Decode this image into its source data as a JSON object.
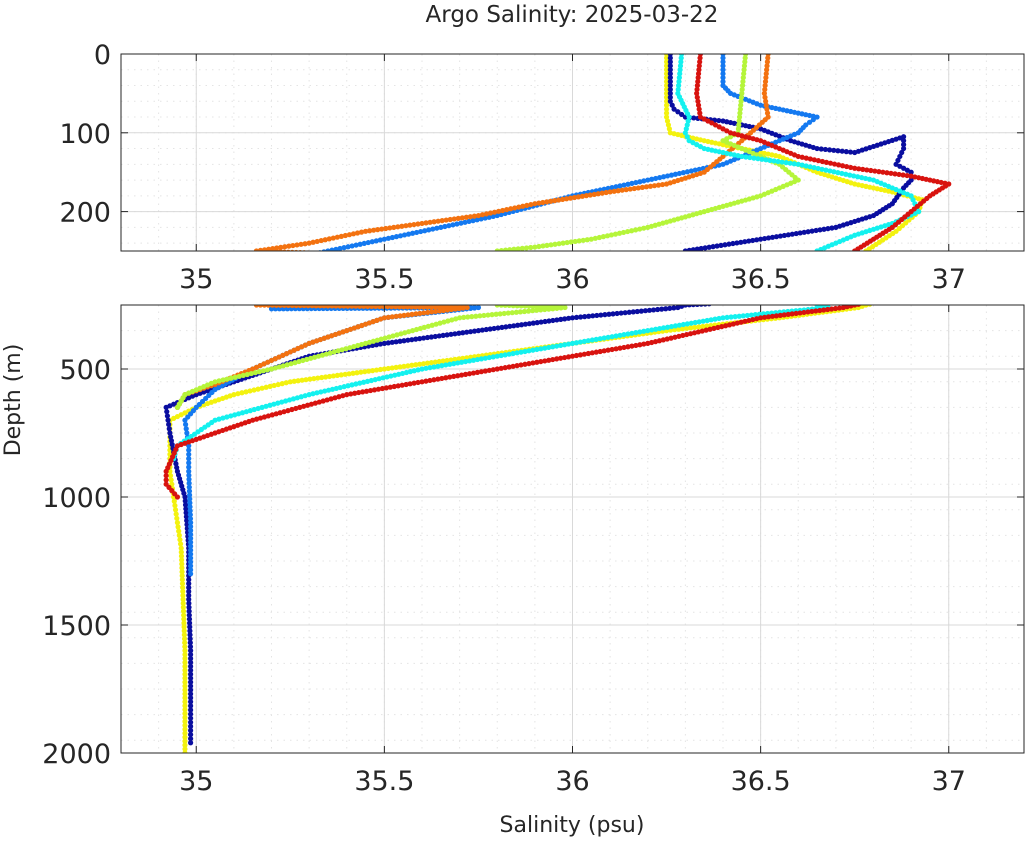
{
  "chart_data": {
    "type": "scatter",
    "title": "Argo Salinity: 2025-03-22",
    "xlabel": "Salinity (psu)",
    "ylabel": "Depth (m)",
    "grid": true,
    "legend": "none",
    "panels": [
      {
        "name": "upper",
        "xlim": [
          34.8,
          37.2
        ],
        "ylim": [
          0,
          250
        ],
        "y_reversed": true,
        "xticks": [
          35,
          35.5,
          36,
          36.5,
          37
        ],
        "xtick_labels": [
          "35",
          "35.5",
          "36",
          "36.5",
          "37"
        ],
        "yticks": [
          0,
          100,
          200
        ],
        "ytick_labels": [
          "0",
          "100",
          "200"
        ]
      },
      {
        "name": "lower",
        "xlim": [
          34.8,
          37.2
        ],
        "ylim": [
          250,
          2000
        ],
        "y_reversed": true,
        "xticks": [
          35,
          35.5,
          36,
          36.5,
          37
        ],
        "xtick_labels": [
          "35",
          "35.5",
          "36",
          "36.5",
          "37"
        ],
        "yticks": [
          500,
          1000,
          1500,
          2000
        ],
        "ytick_labels": [
          "500",
          "1000",
          "1500",
          "2000"
        ]
      }
    ],
    "series": [
      {
        "color": "#f3f20f",
        "points": [
          [
            36.25,
            0
          ],
          [
            36.25,
            80
          ],
          [
            36.26,
            100
          ],
          [
            36.35,
            110
          ],
          [
            36.45,
            120
          ],
          [
            36.55,
            130
          ],
          [
            36.65,
            150
          ],
          [
            36.75,
            165
          ],
          [
            36.85,
            175
          ],
          [
            36.93,
            185
          ],
          [
            36.92,
            200
          ],
          [
            36.86,
            225
          ],
          [
            36.78,
            250
          ],
          [
            36.76,
            260
          ],
          [
            36.55,
            300
          ],
          [
            36.25,
            350
          ],
          [
            36.0,
            400
          ],
          [
            35.75,
            450
          ],
          [
            35.5,
            500
          ],
          [
            35.25,
            550
          ],
          [
            35.1,
            600
          ],
          [
            35.0,
            650
          ],
          [
            34.93,
            700
          ],
          [
            34.93,
            800
          ],
          [
            34.93,
            900
          ],
          [
            34.94,
            1000
          ],
          [
            34.95,
            1100
          ],
          [
            34.96,
            1200
          ],
          [
            34.965,
            1400
          ],
          [
            34.97,
            1600
          ],
          [
            34.97,
            1800
          ],
          [
            34.97,
            2000
          ]
        ]
      },
      {
        "color": "#0a0ea0",
        "points": [
          [
            36.26,
            0
          ],
          [
            36.26,
            60
          ],
          [
            36.27,
            70
          ],
          [
            36.3,
            80
          ],
          [
            36.4,
            85
          ],
          [
            36.5,
            95
          ],
          [
            36.58,
            110
          ],
          [
            36.65,
            120
          ],
          [
            36.75,
            125
          ],
          [
            36.88,
            105
          ],
          [
            36.88,
            120
          ],
          [
            36.86,
            140
          ],
          [
            36.9,
            150
          ],
          [
            36.9,
            160
          ],
          [
            36.88,
            170
          ],
          [
            36.85,
            190
          ],
          [
            36.8,
            205
          ],
          [
            36.7,
            220
          ],
          [
            36.5,
            235
          ],
          [
            36.3,
            250
          ],
          [
            36.28,
            260
          ],
          [
            36.0,
            300
          ],
          [
            35.75,
            350
          ],
          [
            35.5,
            400
          ],
          [
            35.3,
            450
          ],
          [
            35.1,
            550
          ],
          [
            35.0,
            600
          ],
          [
            34.92,
            650
          ],
          [
            34.93,
            750
          ],
          [
            34.95,
            900
          ],
          [
            34.97,
            1000
          ],
          [
            34.98,
            1200
          ],
          [
            34.98,
            1400
          ],
          [
            34.985,
            1600
          ],
          [
            34.985,
            1800
          ],
          [
            34.985,
            1960
          ]
        ]
      },
      {
        "color": "#1479f0",
        "points": [
          [
            36.4,
            0
          ],
          [
            36.4,
            40
          ],
          [
            36.42,
            50
          ],
          [
            36.5,
            65
          ],
          [
            36.6,
            75
          ],
          [
            36.65,
            80
          ],
          [
            36.62,
            90
          ],
          [
            36.6,
            100
          ],
          [
            36.5,
            120
          ],
          [
            36.4,
            140
          ],
          [
            36.2,
            160
          ],
          [
            36.0,
            180
          ],
          [
            35.8,
            205
          ],
          [
            35.65,
            220
          ],
          [
            35.5,
            235
          ],
          [
            35.35,
            250
          ],
          [
            35.2,
            265
          ],
          [
            35.75,
            260
          ],
          [
            35.5,
            300
          ],
          [
            35.3,
            400
          ],
          [
            35.15,
            500
          ],
          [
            35.05,
            580
          ],
          [
            35.0,
            650
          ],
          [
            34.97,
            700
          ],
          [
            34.98,
            800
          ],
          [
            34.98,
            900
          ],
          [
            34.985,
            1100
          ],
          [
            34.985,
            1300
          ]
        ]
      },
      {
        "color": "#f37210",
        "points": [
          [
            36.52,
            0
          ],
          [
            36.51,
            50
          ],
          [
            36.52,
            80
          ],
          [
            36.45,
            110
          ],
          [
            36.4,
            130
          ],
          [
            36.35,
            150
          ],
          [
            36.25,
            165
          ],
          [
            36.1,
            175
          ],
          [
            35.9,
            190
          ],
          [
            35.75,
            205
          ],
          [
            35.6,
            215
          ],
          [
            35.45,
            225
          ],
          [
            35.3,
            240
          ],
          [
            35.16,
            250
          ],
          [
            35.72,
            260
          ],
          [
            35.5,
            300
          ],
          [
            35.3,
            400
          ],
          [
            35.15,
            500
          ],
          [
            35.05,
            560
          ],
          [
            34.97,
            600
          ],
          [
            34.95,
            650
          ]
        ]
      },
      {
        "color": "#b5f53a",
        "points": [
          [
            36.46,
            0
          ],
          [
            36.45,
            50
          ],
          [
            36.44,
            100
          ],
          [
            36.4,
            110
          ],
          [
            36.45,
            120
          ],
          [
            36.55,
            140
          ],
          [
            36.6,
            160
          ],
          [
            36.5,
            180
          ],
          [
            36.35,
            200
          ],
          [
            36.2,
            220
          ],
          [
            36.05,
            235
          ],
          [
            35.9,
            245
          ],
          [
            35.8,
            250
          ],
          [
            35.98,
            260
          ],
          [
            35.7,
            300
          ],
          [
            35.45,
            400
          ],
          [
            35.2,
            500
          ],
          [
            35.05,
            550
          ],
          [
            34.97,
            600
          ],
          [
            34.95,
            650
          ]
        ]
      },
      {
        "color": "#14f1ef",
        "points": [
          [
            36.29,
            0
          ],
          [
            36.28,
            50
          ],
          [
            36.31,
            80
          ],
          [
            36.3,
            100
          ],
          [
            36.31,
            110
          ],
          [
            36.35,
            120
          ],
          [
            36.45,
            130
          ],
          [
            36.6,
            140
          ],
          [
            36.8,
            160
          ],
          [
            36.9,
            180
          ],
          [
            36.92,
            200
          ],
          [
            36.85,
            215
          ],
          [
            36.75,
            230
          ],
          [
            36.65,
            250
          ],
          [
            36.68,
            260
          ],
          [
            36.4,
            300
          ],
          [
            36.0,
            400
          ],
          [
            35.6,
            500
          ],
          [
            35.3,
            600
          ],
          [
            35.05,
            700
          ],
          [
            34.95,
            800
          ],
          [
            34.94,
            850
          ]
        ]
      },
      {
        "color": "#d8130f",
        "points": [
          [
            36.34,
            0
          ],
          [
            36.33,
            50
          ],
          [
            36.34,
            80
          ],
          [
            36.42,
            100
          ],
          [
            36.5,
            110
          ],
          [
            36.6,
            130
          ],
          [
            36.75,
            145
          ],
          [
            36.9,
            155
          ],
          [
            37.0,
            165
          ],
          [
            36.95,
            180
          ],
          [
            36.9,
            200
          ],
          [
            36.85,
            220
          ],
          [
            36.8,
            235
          ],
          [
            36.75,
            250
          ],
          [
            36.72,
            260
          ],
          [
            36.5,
            300
          ],
          [
            36.2,
            400
          ],
          [
            35.8,
            500
          ],
          [
            35.4,
            600
          ],
          [
            35.15,
            700
          ],
          [
            34.95,
            800
          ],
          [
            34.92,
            900
          ],
          [
            34.92,
            950
          ],
          [
            34.95,
            1000
          ]
        ]
      }
    ]
  }
}
